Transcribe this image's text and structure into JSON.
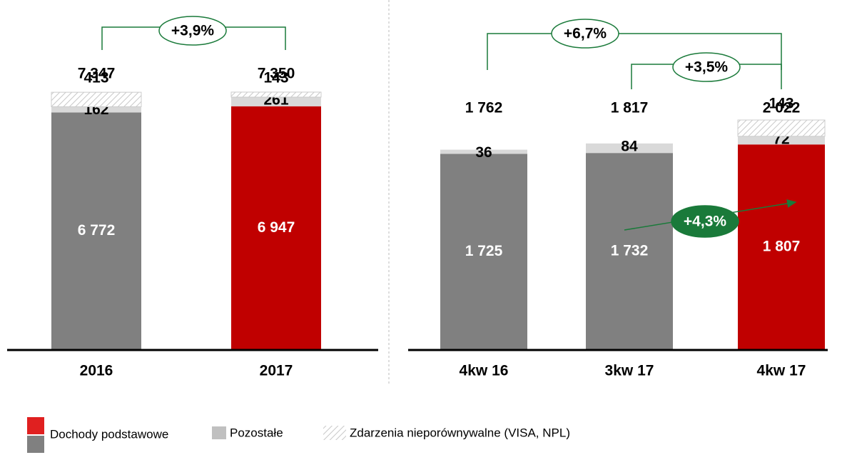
{
  "chart_data": [
    {
      "type": "stacked_bar",
      "categories": [
        "2016",
        "2017"
      ],
      "series": [
        {
          "name": "Dochody podstawowe",
          "colors": [
            "#808080",
            "#c00000"
          ],
          "values": [
            6772,
            6947
          ],
          "value_labels": [
            "6 772",
            "6 947"
          ]
        },
        {
          "name": "Pozostałe",
          "color": "#d9d9d9",
          "values": [
            162,
            261
          ]
        },
        {
          "name": "Zdarzenia nieporównywalne (VISA, NPL)",
          "color": "hatch",
          "values": [
            413,
            143
          ]
        }
      ],
      "totals": [
        7347,
        7350
      ],
      "total_labels": [
        "7 347",
        "7 350"
      ],
      "annotations": [
        "+3,9%"
      ]
    },
    {
      "type": "stacked_bar",
      "categories": [
        "4kw 16",
        "3kw 17",
        "4kw 17"
      ],
      "series": [
        {
          "colors": [
            "#808080",
            "#808080",
            "#c00000"
          ],
          "values": [
            1725,
            1732,
            1807
          ],
          "value_labels": [
            "1 725",
            "1 732",
            "1 807"
          ]
        },
        {
          "color": "#d9d9d9",
          "values": [
            36,
            84,
            72
          ]
        },
        {
          "color": "hatch",
          "values": [
            null,
            null,
            143
          ]
        }
      ],
      "totals": [
        1762,
        1817,
        2022
      ],
      "total_labels": [
        "1 762",
        "1 817",
        "2 022"
      ],
      "annotations": [
        "+6,7%",
        "+3,5%",
        "+4,3%"
      ]
    }
  ]
}
